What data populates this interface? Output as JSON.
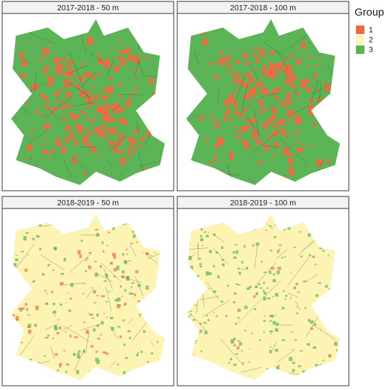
{
  "panels": [
    {
      "title": "2017-2018 - 50 m"
    },
    {
      "title": "2017-2018 - 100 m"
    },
    {
      "title": "2018-2019 - 50 m"
    },
    {
      "title": "2018-2019 - 100 m"
    }
  ],
  "legend": {
    "title": "Group",
    "items": [
      {
        "label": "1",
        "color": "#f1693f"
      },
      {
        "label": "2",
        "color": "#fdf3b3"
      },
      {
        "label": "3",
        "color": "#5bb557"
      }
    ]
  }
}
